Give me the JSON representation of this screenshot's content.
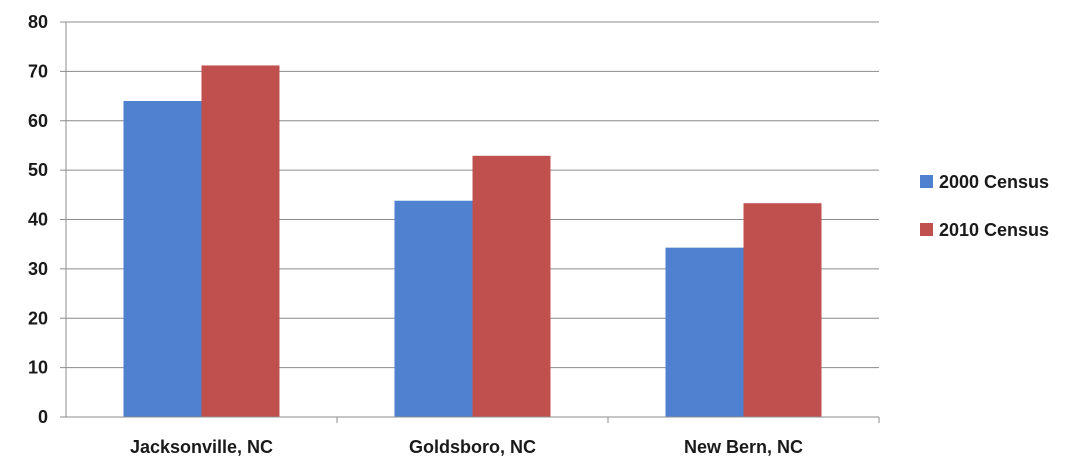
{
  "chart_data": {
    "type": "bar",
    "categories": [
      "Jacksonville, NC",
      "Goldsboro, NC",
      "New Bern, NC"
    ],
    "series": [
      {
        "name": "2000 Census",
        "values": [
          64,
          43.8,
          34.3
        ],
        "color": "#4f81d0"
      },
      {
        "name": "2010 Census",
        "values": [
          71.2,
          52.9,
          43.3
        ],
        "color": "#c0504d"
      }
    ],
    "ylim": [
      0,
      80
    ],
    "yticks": [
      0,
      10,
      20,
      30,
      40,
      50,
      60,
      70,
      80
    ],
    "grid": true,
    "legend_position": "right",
    "title": "",
    "xlabel": "",
    "ylabel": ""
  }
}
